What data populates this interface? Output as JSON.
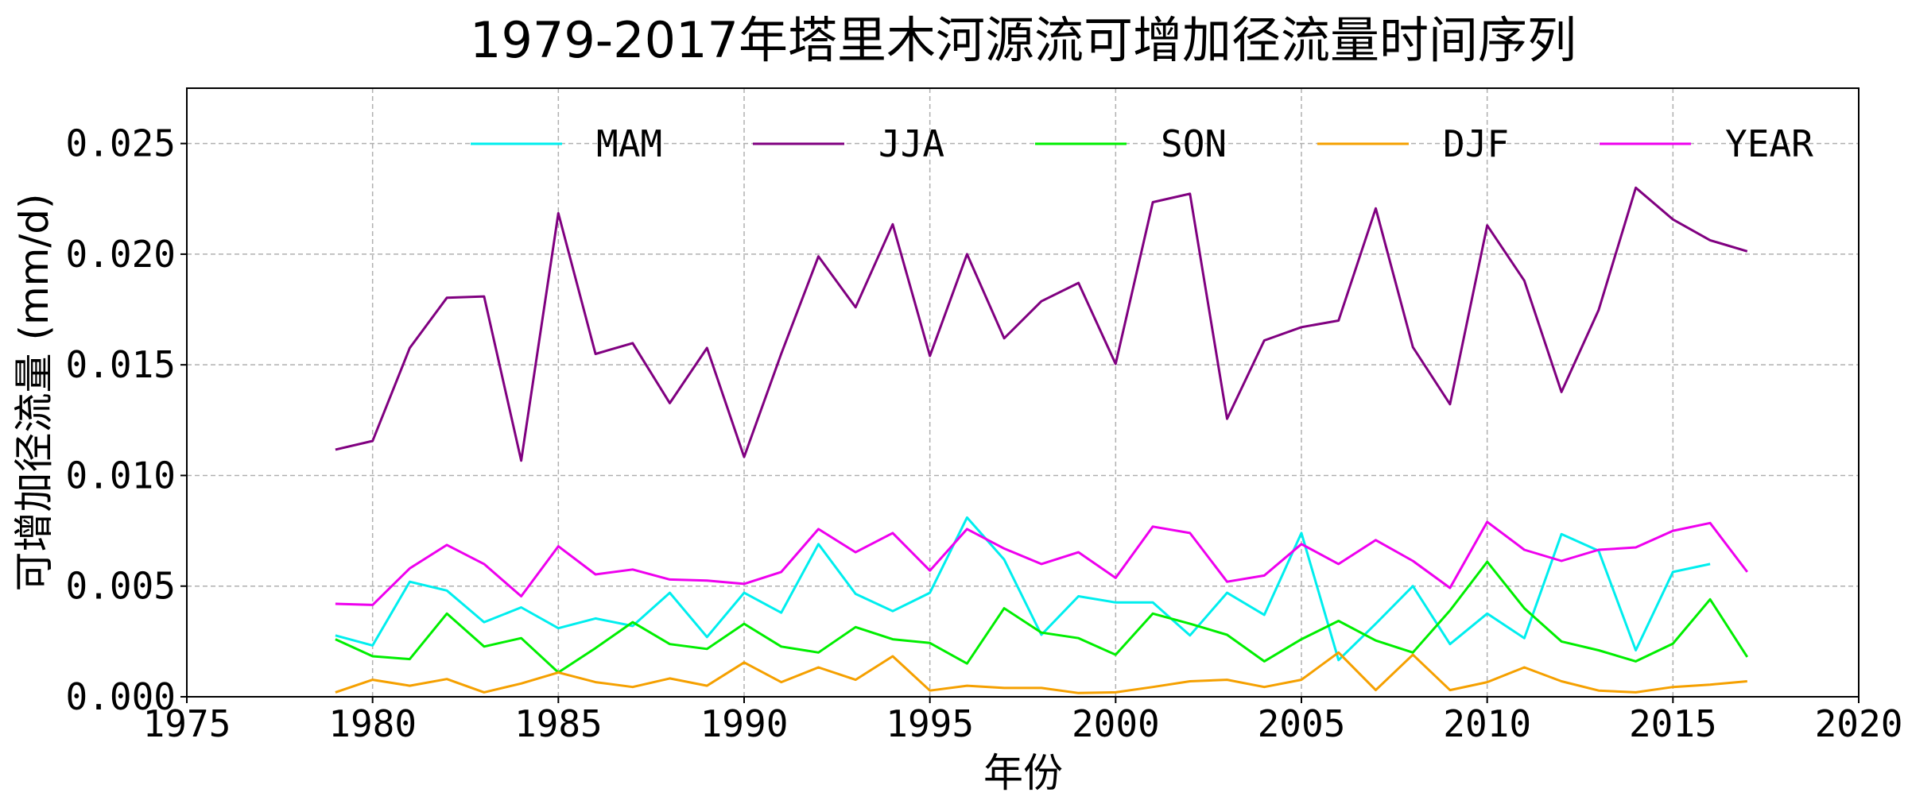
{
  "chart_data": {
    "type": "line",
    "title": "1979-2017年塔里木河源流可增加径流量时间序列",
    "xlabel": "年份",
    "ylabel": "可增加径流量 (mm/d)",
    "xlim": [
      1975,
      2020
    ],
    "ylim": [
      0,
      0.0275
    ],
    "xticks": [
      1975,
      1980,
      1985,
      1990,
      1995,
      2000,
      2005,
      2010,
      2015,
      2020
    ],
    "xtick_labels": [
      "1975",
      "1980",
      "1985",
      "1990",
      "1995",
      "2000",
      "2005",
      "2010",
      "2015",
      "2020"
    ],
    "yticks": [
      0,
      0.005,
      0.01,
      0.015,
      0.02,
      0.025
    ],
    "ytick_labels": [
      "0.000",
      "0.005",
      "0.010",
      "0.015",
      "0.020",
      "0.025"
    ],
    "grid": true,
    "legend_placement": "top",
    "x": [
      1979,
      1980,
      1981,
      1982,
      1983,
      1984,
      1985,
      1986,
      1987,
      1988,
      1989,
      1990,
      1991,
      1992,
      1993,
      1994,
      1995,
      1996,
      1997,
      1998,
      1999,
      2000,
      2001,
      2002,
      2003,
      2004,
      2005,
      2006,
      2007,
      2008,
      2009,
      2010,
      2011,
      2012,
      2013,
      2014,
      2015,
      2016,
      2017
    ],
    "series": [
      {
        "name": "MAM",
        "color": "#00eeee",
        "values": [
          0.00277,
          0.00232,
          0.0052,
          0.0048,
          0.00337,
          0.00404,
          0.0031,
          0.00354,
          0.0032,
          0.0047,
          0.0027,
          0.0047,
          0.0038,
          0.0069,
          0.00465,
          0.00387,
          0.0047,
          0.0081,
          0.0062,
          0.0028,
          0.00454,
          0.00426,
          0.00426,
          0.00277,
          0.0047,
          0.0037,
          0.0074,
          0.00166,
          0.0033,
          0.005,
          0.00238,
          0.00376,
          0.00265,
          0.00735,
          0.0066,
          0.0021,
          0.00564,
          0.006,
          null
        ]
      },
      {
        "name": "JJA",
        "color": "#800080",
        "values": [
          0.01117,
          0.01156,
          0.01576,
          0.01803,
          0.01809,
          0.01067,
          0.02185,
          0.01549,
          0.01598,
          0.01327,
          0.01576,
          0.01084,
          0.0155,
          0.0199,
          0.0176,
          0.02135,
          0.0154,
          0.02,
          0.0162,
          0.01787,
          0.0187,
          0.01504,
          0.02235,
          0.02273,
          0.01256,
          0.0161,
          0.0167,
          0.017,
          0.02207,
          0.0158,
          0.01322,
          0.0213,
          0.0188,
          0.01377,
          0.01748,
          0.023,
          0.02157,
          0.02063,
          0.02013
        ]
      },
      {
        "name": "SON",
        "color": "#00ee00",
        "values": [
          0.0026,
          0.00183,
          0.0017,
          0.00376,
          0.00227,
          0.00265,
          0.0011,
          0.0022,
          0.00337,
          0.00238,
          0.00216,
          0.0033,
          0.00227,
          0.002,
          0.00315,
          0.0026,
          0.00243,
          0.0015,
          0.004,
          0.0029,
          0.00265,
          0.0019,
          0.00376,
          0.0033,
          0.0028,
          0.0016,
          0.0026,
          0.00343,
          0.00254,
          0.002,
          0.0039,
          0.0061,
          0.004,
          0.0025,
          0.0021,
          0.0016,
          0.0024,
          0.0044,
          0.0018
        ]
      },
      {
        "name": "DJF",
        "color": "#f5a000",
        "values": [
          0.0002,
          0.00077,
          0.0005,
          0.0008,
          0.0002,
          0.0006,
          0.0011,
          0.00066,
          0.00044,
          0.00083,
          0.0005,
          0.00155,
          0.00066,
          0.00133,
          0.00077,
          0.00183,
          0.00028,
          0.0005,
          0.0004,
          0.0004,
          0.00017,
          0.0002,
          0.00044,
          0.0007,
          0.00077,
          0.00044,
          0.00077,
          0.002,
          0.0003,
          0.0019,
          0.0003,
          0.00066,
          0.00133,
          0.0007,
          0.00028,
          0.0002,
          0.00044,
          0.00055,
          0.0007
        ]
      },
      {
        "name": "YEAR",
        "color": "#ee00ee",
        "values": [
          0.0042,
          0.00415,
          0.0058,
          0.00686,
          0.006,
          0.00454,
          0.0068,
          0.00553,
          0.00575,
          0.0053,
          0.00525,
          0.0051,
          0.00564,
          0.00758,
          0.00653,
          0.0074,
          0.0057,
          0.00758,
          0.0067,
          0.006,
          0.00653,
          0.00537,
          0.00769,
          0.0074,
          0.0052,
          0.00548,
          0.0069,
          0.006,
          0.00708,
          0.00614,
          0.00492,
          0.0079,
          0.00664,
          0.00614,
          0.00664,
          0.00675,
          0.0075,
          0.00785,
          0.00564
        ]
      }
    ]
  }
}
